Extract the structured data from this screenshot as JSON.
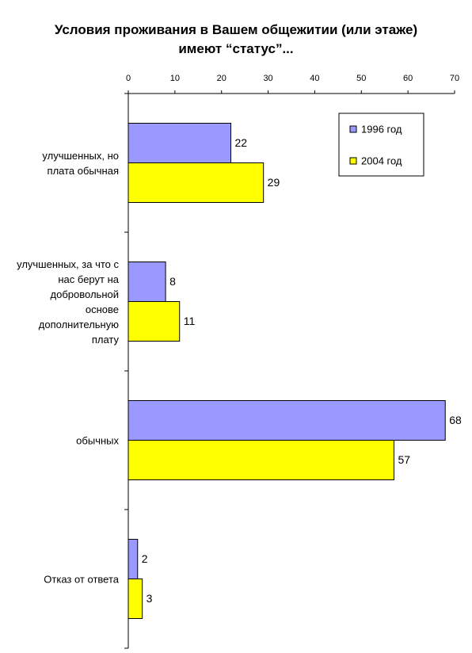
{
  "chart_data": {
    "type": "bar",
    "orientation": "horizontal",
    "title": "Условия проживания в Вашем общежитии (или этаже) имеют “статус”...",
    "categories": [
      "улучшенных, но плата обычная",
      "улучшенных, за что с нас берут на добровольной основе дополнительную плату",
      "обычных",
      "Отказ от ответа"
    ],
    "series": [
      {
        "name": "1996 год",
        "color": "#9999ff",
        "values": [
          22,
          8,
          68,
          2
        ]
      },
      {
        "name": "2004 год",
        "color": "#ffff00",
        "values": [
          29,
          11,
          57,
          3
        ]
      }
    ],
    "xlim": [
      0,
      70
    ],
    "xticks": [
      0,
      10,
      20,
      30,
      40,
      50,
      60,
      70
    ],
    "legend": "upper right"
  }
}
